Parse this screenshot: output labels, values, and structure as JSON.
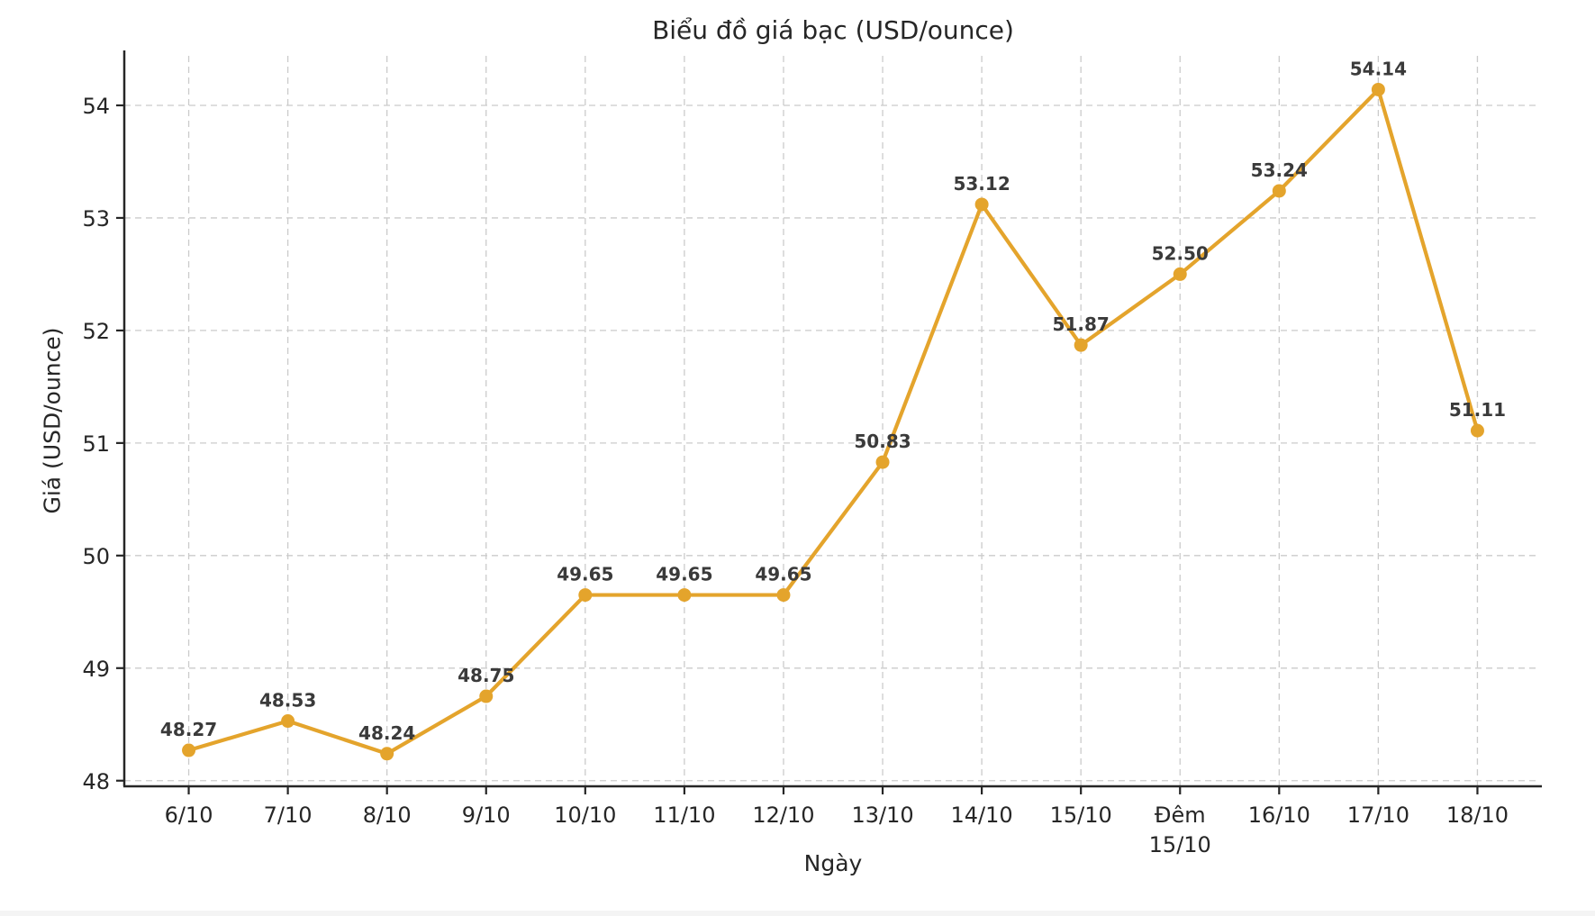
{
  "chart_data": {
    "type": "line",
    "title": "Biểu đồ giá bạc (USD/ounce)",
    "xlabel": "Ngày",
    "ylabel": "Giá (USD/ounce)",
    "categories": [
      "6/10",
      "7/10",
      "8/10",
      "9/10",
      "10/10",
      "11/10",
      "12/10",
      "13/10",
      "14/10",
      "15/10",
      "Đêm\n15/10",
      "16/10",
      "17/10",
      "18/10"
    ],
    "values": [
      48.27,
      48.53,
      48.24,
      48.75,
      49.65,
      49.65,
      49.65,
      50.83,
      53.12,
      51.87,
      52.5,
      53.24,
      54.14,
      51.11
    ],
    "point_labels": [
      "48.27",
      "48.53",
      "48.24",
      "48.75",
      "49.65",
      "49.65",
      "49.65",
      "50.83",
      "53.12",
      "51.87",
      "52.50",
      "53.24",
      "54.14",
      "51.11"
    ],
    "yticks": [
      48,
      49,
      50,
      51,
      52,
      53,
      54
    ],
    "ylim": [
      47.95,
      54.44
    ],
    "grid": true,
    "grid_style": "dashed",
    "legend_position": "none",
    "colors": {
      "line": "#E4A42C",
      "marker": "#E4A42C",
      "grid": "#cbcbcb",
      "axis": "#262626",
      "tick_text": "#262626",
      "point_label_text": "#3a3a3a",
      "background": "#ffffff"
    }
  }
}
